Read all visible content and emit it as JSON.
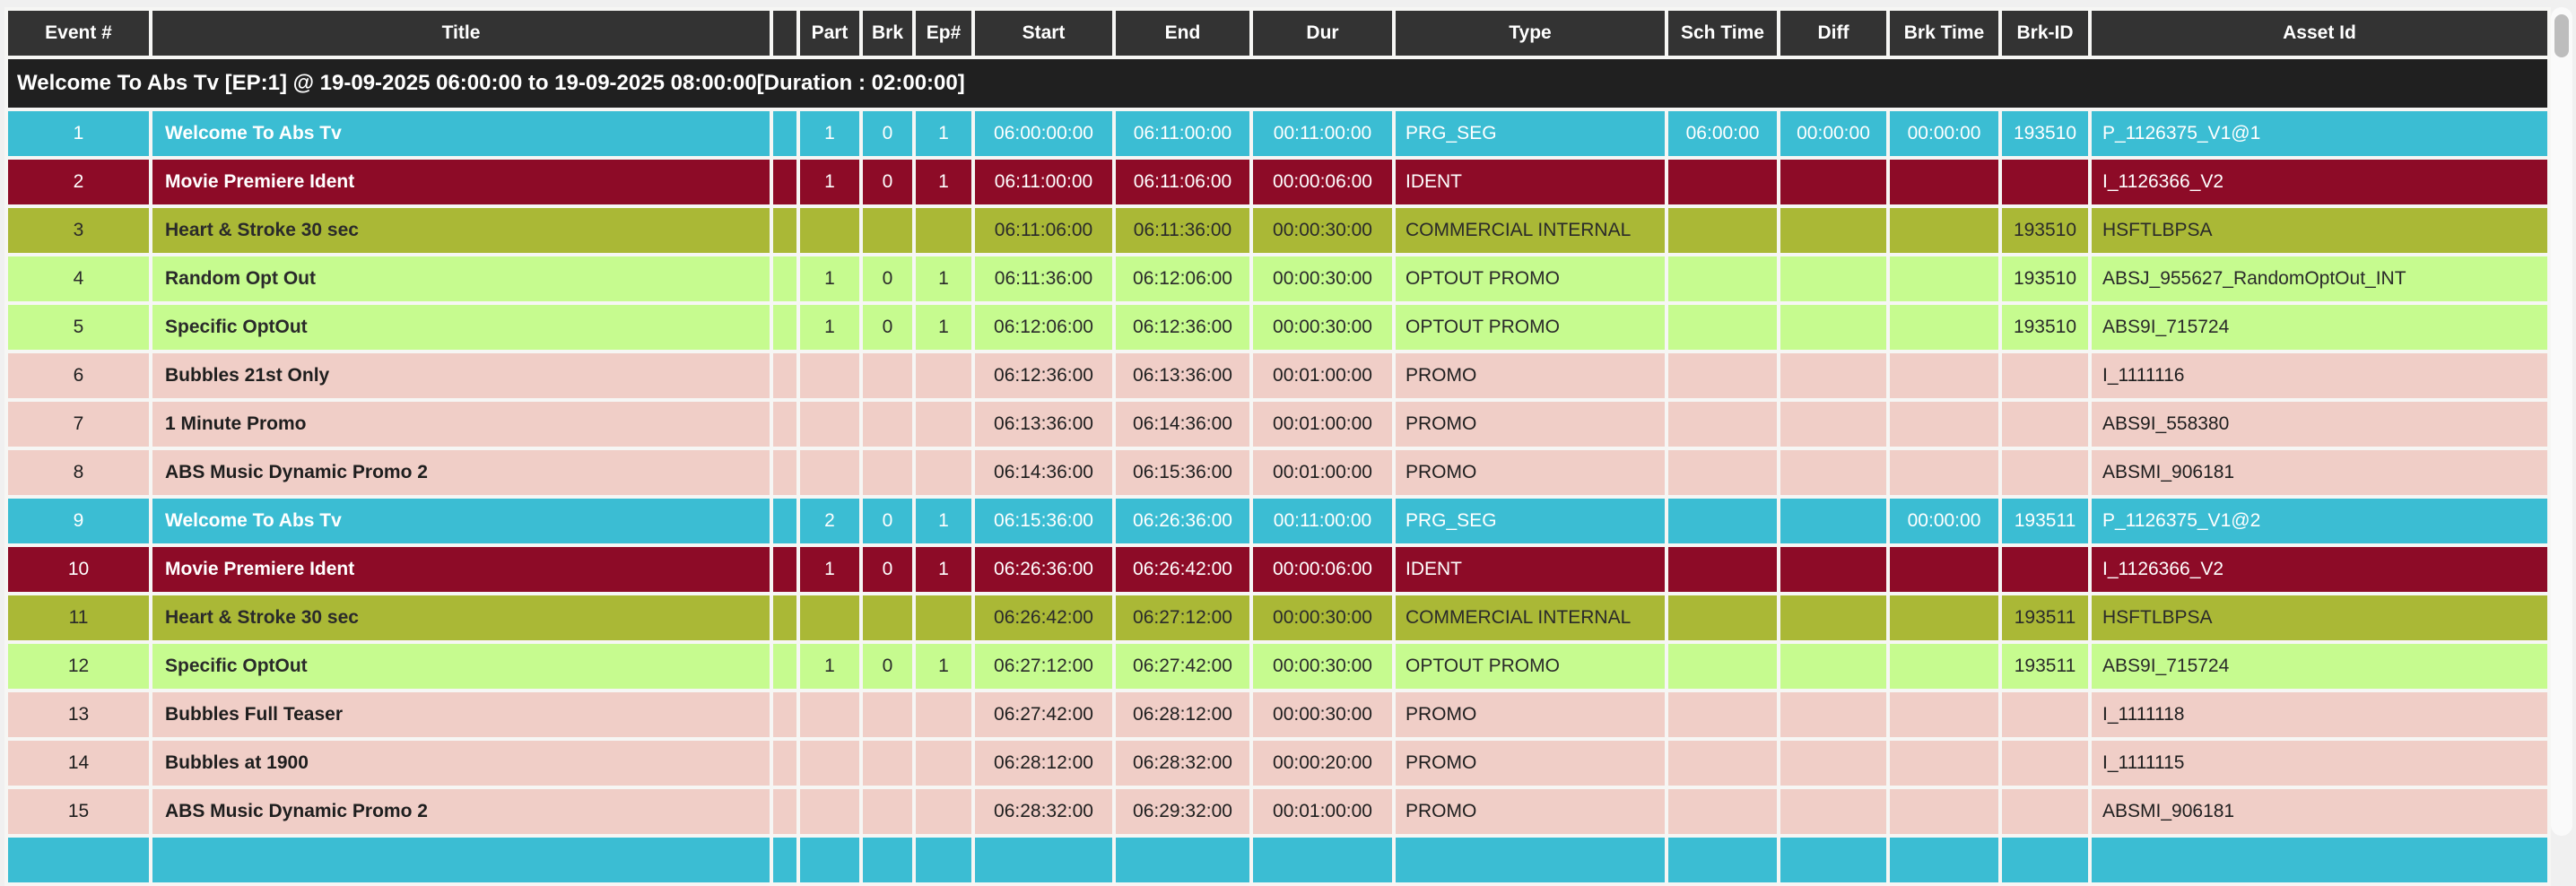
{
  "columns": [
    {
      "key": "event",
      "label": "Event #"
    },
    {
      "key": "title",
      "label": "Title"
    },
    {
      "key": "blank",
      "label": ""
    },
    {
      "key": "part",
      "label": "Part"
    },
    {
      "key": "brk",
      "label": "Brk"
    },
    {
      "key": "ep",
      "label": "Ep#"
    },
    {
      "key": "start",
      "label": "Start"
    },
    {
      "key": "end",
      "label": "End"
    },
    {
      "key": "dur",
      "label": "Dur"
    },
    {
      "key": "type",
      "label": "Type"
    },
    {
      "key": "sch",
      "label": "Sch Time"
    },
    {
      "key": "diff",
      "label": "Diff"
    },
    {
      "key": "brktime",
      "label": "Brk Time"
    },
    {
      "key": "brkid",
      "label": "Brk-ID"
    },
    {
      "key": "asset",
      "label": "Asset Id"
    }
  ],
  "group_header": "Welcome To Abs Tv [EP:1] @ 19-09-2025 06:00:00 to 19-09-2025 08:00:00[Duration : 02:00:00]",
  "rows": [
    {
      "event": "1",
      "title": "Welcome To Abs Tv",
      "blank": "",
      "part": "1",
      "brk": "0",
      "ep": "1",
      "start": "06:00:00:00",
      "end": "06:11:00:00",
      "dur": "00:11:00:00",
      "type": "PRG_SEG",
      "sch": "06:00:00",
      "diff": "00:00:00",
      "brktime": "00:00:00",
      "brkid": "193510",
      "asset": "P_1126375_V1@1",
      "color": "prg_seg"
    },
    {
      "event": "2",
      "title": "Movie Premiere Ident",
      "blank": "",
      "part": "1",
      "brk": "0",
      "ep": "1",
      "start": "06:11:00:00",
      "end": "06:11:06:00",
      "dur": "00:00:06:00",
      "type": "IDENT",
      "sch": "",
      "diff": "",
      "brktime": "",
      "brkid": "",
      "asset": "I_1126366_V2",
      "color": "ident"
    },
    {
      "event": "3",
      "title": "Heart & Stroke 30 sec",
      "blank": "",
      "part": "",
      "brk": "",
      "ep": "",
      "start": "06:11:06:00",
      "end": "06:11:36:00",
      "dur": "00:00:30:00",
      "type": "COMMERCIAL INTERNAL",
      "sch": "",
      "diff": "",
      "brktime": "",
      "brkid": "193510",
      "asset": "HSFTLBPSA",
      "color": "commercial"
    },
    {
      "event": "4",
      "title": "Random Opt Out",
      "blank": "",
      "part": "1",
      "brk": "0",
      "ep": "1",
      "start": "06:11:36:00",
      "end": "06:12:06:00",
      "dur": "00:00:30:00",
      "type": "OPTOUT PROMO",
      "sch": "",
      "diff": "",
      "brktime": "",
      "brkid": "193510",
      "asset": "ABSJ_955627_RandomOptOut_INT",
      "color": "optout"
    },
    {
      "event": "5",
      "title": "Specific OptOut",
      "blank": "",
      "part": "1",
      "brk": "0",
      "ep": "1",
      "start": "06:12:06:00",
      "end": "06:12:36:00",
      "dur": "00:00:30:00",
      "type": "OPTOUT PROMO",
      "sch": "",
      "diff": "",
      "brktime": "",
      "brkid": "193510",
      "asset": "ABS9I_715724",
      "color": "optout"
    },
    {
      "event": "6",
      "title": "Bubbles 21st Only",
      "blank": "",
      "part": "",
      "brk": "",
      "ep": "",
      "start": "06:12:36:00",
      "end": "06:13:36:00",
      "dur": "00:01:00:00",
      "type": "PROMO",
      "sch": "",
      "diff": "",
      "brktime": "",
      "brkid": "",
      "asset": "I_1111116",
      "color": "promo"
    },
    {
      "event": "7",
      "title": "1 Minute Promo",
      "blank": "",
      "part": "",
      "brk": "",
      "ep": "",
      "start": "06:13:36:00",
      "end": "06:14:36:00",
      "dur": "00:01:00:00",
      "type": "PROMO",
      "sch": "",
      "diff": "",
      "brktime": "",
      "brkid": "",
      "asset": "ABS9I_558380",
      "color": "promo"
    },
    {
      "event": "8",
      "title": "ABS Music Dynamic Promo 2",
      "blank": "",
      "part": "",
      "brk": "",
      "ep": "",
      "start": "06:14:36:00",
      "end": "06:15:36:00",
      "dur": "00:01:00:00",
      "type": "PROMO",
      "sch": "",
      "diff": "",
      "brktime": "",
      "brkid": "",
      "asset": "ABSMI_906181",
      "color": "promo"
    },
    {
      "event": "9",
      "title": "Welcome To Abs Tv",
      "blank": "",
      "part": "2",
      "brk": "0",
      "ep": "1",
      "start": "06:15:36:00",
      "end": "06:26:36:00",
      "dur": "00:11:00:00",
      "type": "PRG_SEG",
      "sch": "",
      "diff": "",
      "brktime": "00:00:00",
      "brkid": "193511",
      "asset": "P_1126375_V1@2",
      "color": "prg_seg"
    },
    {
      "event": "10",
      "title": "Movie Premiere Ident",
      "blank": "",
      "part": "1",
      "brk": "0",
      "ep": "1",
      "start": "06:26:36:00",
      "end": "06:26:42:00",
      "dur": "00:00:06:00",
      "type": "IDENT",
      "sch": "",
      "diff": "",
      "brktime": "",
      "brkid": "",
      "asset": "I_1126366_V2",
      "color": "ident"
    },
    {
      "event": "11",
      "title": "Heart & Stroke 30 sec",
      "blank": "",
      "part": "",
      "brk": "",
      "ep": "",
      "start": "06:26:42:00",
      "end": "06:27:12:00",
      "dur": "00:00:30:00",
      "type": "COMMERCIAL INTERNAL",
      "sch": "",
      "diff": "",
      "brktime": "",
      "brkid": "193511",
      "asset": "HSFTLBPSA",
      "color": "commercial"
    },
    {
      "event": "12",
      "title": "Specific OptOut",
      "blank": "",
      "part": "1",
      "brk": "0",
      "ep": "1",
      "start": "06:27:12:00",
      "end": "06:27:42:00",
      "dur": "00:00:30:00",
      "type": "OPTOUT PROMO",
      "sch": "",
      "diff": "",
      "brktime": "",
      "brkid": "193511",
      "asset": "ABS9I_715724",
      "color": "optout"
    },
    {
      "event": "13",
      "title": "Bubbles Full Teaser",
      "blank": "",
      "part": "",
      "brk": "",
      "ep": "",
      "start": "06:27:42:00",
      "end": "06:28:12:00",
      "dur": "00:00:30:00",
      "type": "PROMO",
      "sch": "",
      "diff": "",
      "brktime": "",
      "brkid": "",
      "asset": "I_1111118",
      "color": "promo"
    },
    {
      "event": "14",
      "title": "Bubbles at 1900",
      "blank": "",
      "part": "",
      "brk": "",
      "ep": "",
      "start": "06:28:12:00",
      "end": "06:28:32:00",
      "dur": "00:00:20:00",
      "type": "PROMO",
      "sch": "",
      "diff": "",
      "brktime": "",
      "brkid": "",
      "asset": "I_1111115",
      "color": "promo"
    },
    {
      "event": "15",
      "title": "ABS Music Dynamic Promo 2",
      "blank": "",
      "part": "",
      "brk": "",
      "ep": "",
      "start": "06:28:32:00",
      "end": "06:29:32:00",
      "dur": "00:01:00:00",
      "type": "PROMO",
      "sch": "",
      "diff": "",
      "brktime": "",
      "brkid": "",
      "asset": "ABSMI_906181",
      "color": "promo"
    }
  ],
  "next_row_peek": {
    "color": "prg_seg"
  },
  "colors": {
    "page_bg": "#f0f0f0",
    "header_bg": "#333333",
    "group_row_bg": "#202020",
    "row_types": {
      "prg_seg": "#3bbdd3",
      "ident": "#8d0b27",
      "commercial_internal": "#aab836",
      "optout_promo": "#c6fb8f",
      "promo": "#f0cec7"
    },
    "scrollbar_track": "#fafafa",
    "scrollbar_thumb": "#bdbdbd"
  }
}
